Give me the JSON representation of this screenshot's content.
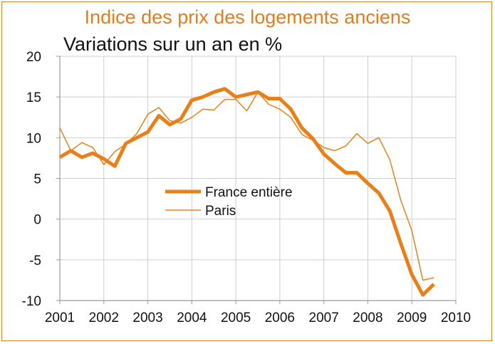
{
  "chart_data": {
    "type": "line",
    "title": "Indice des prix des logements anciens",
    "subtitle": "Variations sur un an en %",
    "xlabel": "",
    "ylabel": "",
    "xlim": [
      2001,
      2010
    ],
    "ylim": [
      -10,
      20
    ],
    "x_ticks": [
      "2001",
      "2002",
      "2003",
      "2004",
      "2005",
      "2006",
      "2007",
      "2008",
      "2009",
      "2010"
    ],
    "y_ticks": [
      "20",
      "15",
      "10",
      "5",
      "0",
      "-5",
      "-10"
    ],
    "grid": true,
    "legend_position": "center",
    "series": [
      {
        "name": "France entière",
        "color": "#e8801a",
        "x": [
          2001.0,
          2001.25,
          2001.5,
          2001.75,
          2002.0,
          2002.25,
          2002.5,
          2002.75,
          2003.0,
          2003.25,
          2003.5,
          2003.75,
          2004.0,
          2004.25,
          2004.5,
          2004.75,
          2005.0,
          2005.25,
          2005.5,
          2005.75,
          2006.0,
          2006.25,
          2006.5,
          2006.75,
          2007.0,
          2007.25,
          2007.5,
          2007.75,
          2008.0,
          2008.25,
          2008.5,
          2008.75,
          2009.0,
          2009.25,
          2009.5
        ],
        "values": [
          7.6,
          8.4,
          7.6,
          8.1,
          7.4,
          6.5,
          9.3,
          10.0,
          10.7,
          12.7,
          11.6,
          12.3,
          14.6,
          15.0,
          15.6,
          16.0,
          15.0,
          15.3,
          15.6,
          14.8,
          14.8,
          13.5,
          11.2,
          9.9,
          8.0,
          6.8,
          5.7,
          5.7,
          4.4,
          3.2,
          1.0,
          -3.0,
          -6.8,
          -9.3,
          -8.0
        ]
      },
      {
        "name": "Paris",
        "color": "#e8801a",
        "x": [
          2001.0,
          2001.25,
          2001.5,
          2001.75,
          2002.0,
          2002.25,
          2002.5,
          2002.75,
          2003.0,
          2003.25,
          2003.5,
          2003.75,
          2004.0,
          2004.25,
          2004.5,
          2004.75,
          2005.0,
          2005.25,
          2005.5,
          2005.75,
          2006.0,
          2006.25,
          2006.5,
          2006.75,
          2007.0,
          2007.25,
          2007.5,
          2007.75,
          2008.0,
          2008.25,
          2008.5,
          2008.75,
          2009.0,
          2009.25,
          2009.5
        ],
        "values": [
          11.2,
          8.4,
          9.4,
          8.8,
          6.7,
          8.3,
          9.2,
          10.5,
          12.9,
          13.7,
          12.1,
          11.8,
          12.5,
          13.5,
          13.4,
          14.7,
          14.7,
          13.3,
          15.6,
          14.1,
          13.5,
          12.5,
          10.4,
          9.7,
          8.8,
          8.4,
          9.0,
          10.5,
          9.3,
          10.0,
          7.3,
          2.3,
          -1.4,
          -7.5,
          -7.2
        ]
      }
    ]
  }
}
